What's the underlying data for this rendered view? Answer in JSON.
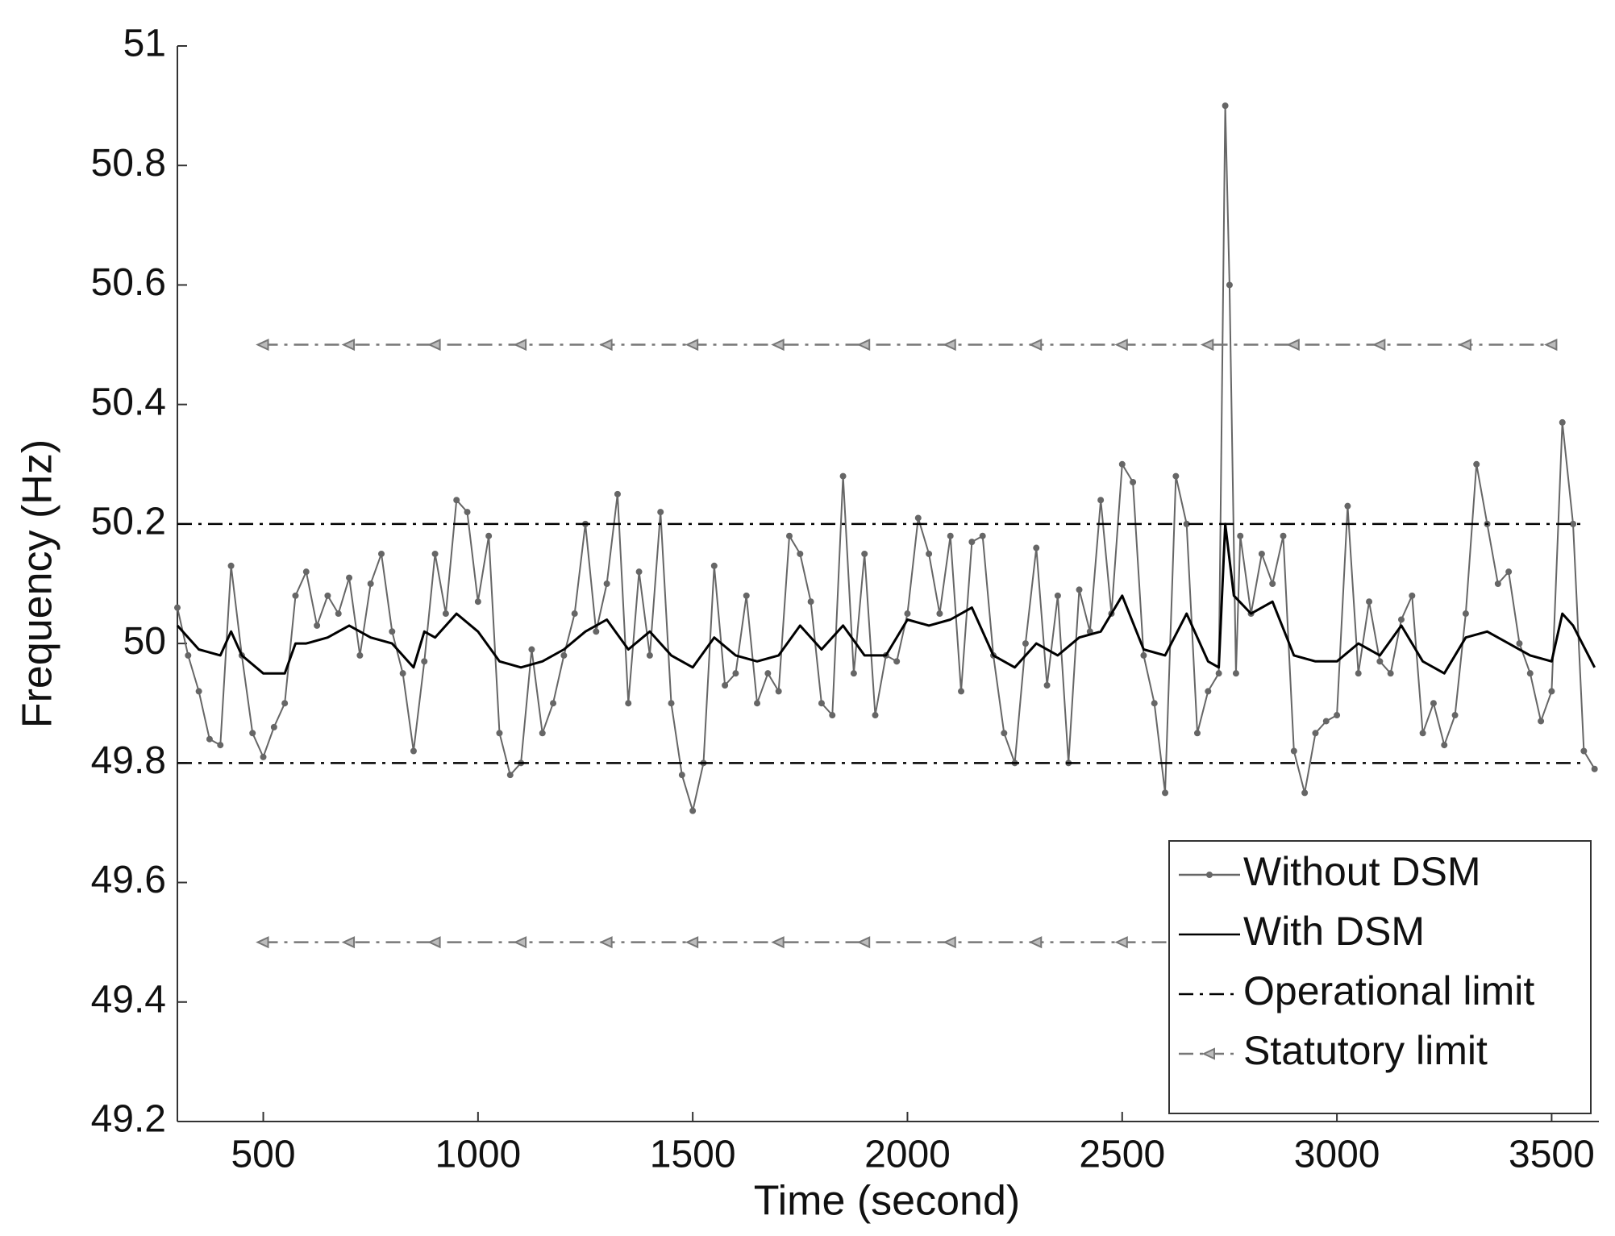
{
  "chart_data": {
    "type": "line",
    "x_label": "Time (second)",
    "y_label": "Frequency (Hz)",
    "xlim": [
      300,
      3610
    ],
    "ylim": [
      49.2,
      51
    ],
    "xticks": [
      500,
      1000,
      1500,
      2000,
      2500,
      3000,
      3500
    ],
    "yticks": [
      49.2,
      49.4,
      49.6,
      49.8,
      50,
      50.2,
      50.4,
      50.6,
      50.8,
      51
    ],
    "legend": "lower right",
    "series": [
      {
        "name": "Without DSM",
        "color": "#666666",
        "marker": "dot",
        "x": [
          300,
          325,
          350,
          375,
          400,
          425,
          450,
          475,
          500,
          525,
          550,
          575,
          600,
          625,
          650,
          675,
          700,
          725,
          750,
          775,
          800,
          825,
          850,
          875,
          900,
          925,
          950,
          975,
          1000,
          1025,
          1050,
          1075,
          1100,
          1125,
          1150,
          1175,
          1200,
          1225,
          1250,
          1275,
          1300,
          1325,
          1350,
          1375,
          1400,
          1425,
          1450,
          1475,
          1500,
          1525,
          1550,
          1575,
          1600,
          1625,
          1650,
          1675,
          1700,
          1725,
          1750,
          1775,
          1800,
          1825,
          1850,
          1875,
          1900,
          1925,
          1950,
          1975,
          2000,
          2025,
          2050,
          2075,
          2100,
          2125,
          2150,
          2175,
          2200,
          2225,
          2250,
          2275,
          2300,
          2325,
          2350,
          2375,
          2400,
          2425,
          2450,
          2475,
          2500,
          2525,
          2550,
          2575,
          2600,
          2625,
          2650,
          2675,
          2700,
          2725,
          2740,
          2750,
          2765,
          2775,
          2800,
          2825,
          2850,
          2875,
          2900,
          2925,
          2950,
          2975,
          3000,
          3025,
          3050,
          3075,
          3100,
          3125,
          3150,
          3175,
          3200,
          3225,
          3250,
          3275,
          3300,
          3325,
          3350,
          3375,
          3400,
          3425,
          3450,
          3475,
          3500,
          3525,
          3550,
          3575,
          3600
        ],
        "values": [
          50.06,
          49.98,
          49.92,
          49.84,
          49.83,
          50.13,
          49.98,
          49.85,
          49.81,
          49.86,
          49.9,
          50.08,
          50.12,
          50.03,
          50.08,
          50.05,
          50.11,
          49.98,
          50.1,
          50.15,
          50.02,
          49.95,
          49.82,
          49.97,
          50.15,
          50.05,
          50.24,
          50.22,
          50.07,
          50.18,
          49.85,
          49.78,
          49.8,
          49.99,
          49.85,
          49.9,
          49.98,
          50.05,
          50.2,
          50.02,
          50.1,
          50.25,
          49.9,
          50.12,
          49.98,
          50.22,
          49.9,
          49.78,
          49.72,
          49.8,
          50.13,
          49.93,
          49.95,
          50.08,
          49.9,
          49.95,
          49.92,
          50.18,
          50.15,
          50.07,
          49.9,
          49.88,
          50.28,
          49.95,
          50.15,
          49.88,
          49.98,
          49.97,
          50.05,
          50.21,
          50.15,
          50.05,
          50.18,
          49.92,
          50.17,
          50.18,
          49.98,
          49.85,
          49.8,
          50.0,
          50.16,
          49.93,
          50.08,
          49.8,
          50.09,
          50.02,
          50.24,
          50.05,
          50.3,
          50.27,
          49.98,
          49.9,
          49.75,
          50.28,
          50.2,
          49.85,
          49.92,
          49.95,
          50.9,
          50.6,
          49.95,
          50.18,
          50.05,
          50.15,
          50.1,
          50.18,
          49.82,
          49.75,
          49.85,
          49.87,
          49.88,
          50.23,
          49.95,
          50.07,
          49.97,
          49.95,
          50.04,
          50.08,
          49.85,
          49.9,
          49.83,
          49.88,
          50.05,
          50.3,
          50.2,
          50.1,
          50.12,
          50.0,
          49.95,
          49.87,
          49.92,
          50.37,
          50.2,
          49.82,
          49.79
        ]
      },
      {
        "name": "With DSM",
        "color": "#000000",
        "x": [
          300,
          350,
          400,
          425,
          450,
          500,
          550,
          575,
          600,
          650,
          700,
          750,
          800,
          850,
          875,
          900,
          950,
          1000,
          1050,
          1100,
          1150,
          1200,
          1250,
          1300,
          1350,
          1400,
          1450,
          1500,
          1550,
          1600,
          1650,
          1700,
          1750,
          1800,
          1850,
          1900,
          1950,
          2000,
          2050,
          2100,
          2150,
          2200,
          2250,
          2300,
          2350,
          2400,
          2450,
          2500,
          2550,
          2600,
          2650,
          2700,
          2725,
          2740,
          2760,
          2800,
          2850,
          2900,
          2950,
          3000,
          3050,
          3100,
          3150,
          3200,
          3250,
          3300,
          3350,
          3400,
          3450,
          3500,
          3525,
          3550,
          3600
        ],
        "values": [
          50.03,
          49.99,
          49.98,
          50.02,
          49.98,
          49.95,
          49.95,
          50.0,
          50.0,
          50.01,
          50.03,
          50.01,
          50.0,
          49.96,
          50.02,
          50.01,
          50.05,
          50.02,
          49.97,
          49.96,
          49.97,
          49.99,
          50.02,
          50.04,
          49.99,
          50.02,
          49.98,
          49.96,
          50.01,
          49.98,
          49.97,
          49.98,
          50.03,
          49.99,
          50.03,
          49.98,
          49.98,
          50.04,
          50.03,
          50.04,
          50.06,
          49.98,
          49.96,
          50.0,
          49.98,
          50.01,
          50.02,
          50.08,
          49.99,
          49.98,
          50.05,
          49.97,
          49.96,
          50.2,
          50.08,
          50.05,
          50.07,
          49.98,
          49.97,
          49.97,
          50.0,
          49.98,
          50.03,
          49.97,
          49.95,
          50.01,
          50.02,
          50.0,
          49.98,
          49.97,
          50.05,
          50.03,
          49.96
        ]
      },
      {
        "name": "Operational limit",
        "color": "#000000",
        "dash": "dashdot",
        "levels": [
          49.8,
          50.2
        ],
        "x": [
          300,
          3580
        ]
      },
      {
        "name": "Statutory limit",
        "color": "#777777",
        "dash": "dashdot",
        "marker": "triangle",
        "levels": [
          49.5,
          50.5
        ],
        "x": [
          500,
          700,
          900,
          1100,
          1300,
          1500,
          1700,
          1900,
          2100,
          2300,
          2500,
          2700,
          2900,
          3100,
          3300,
          3500
        ]
      }
    ]
  }
}
